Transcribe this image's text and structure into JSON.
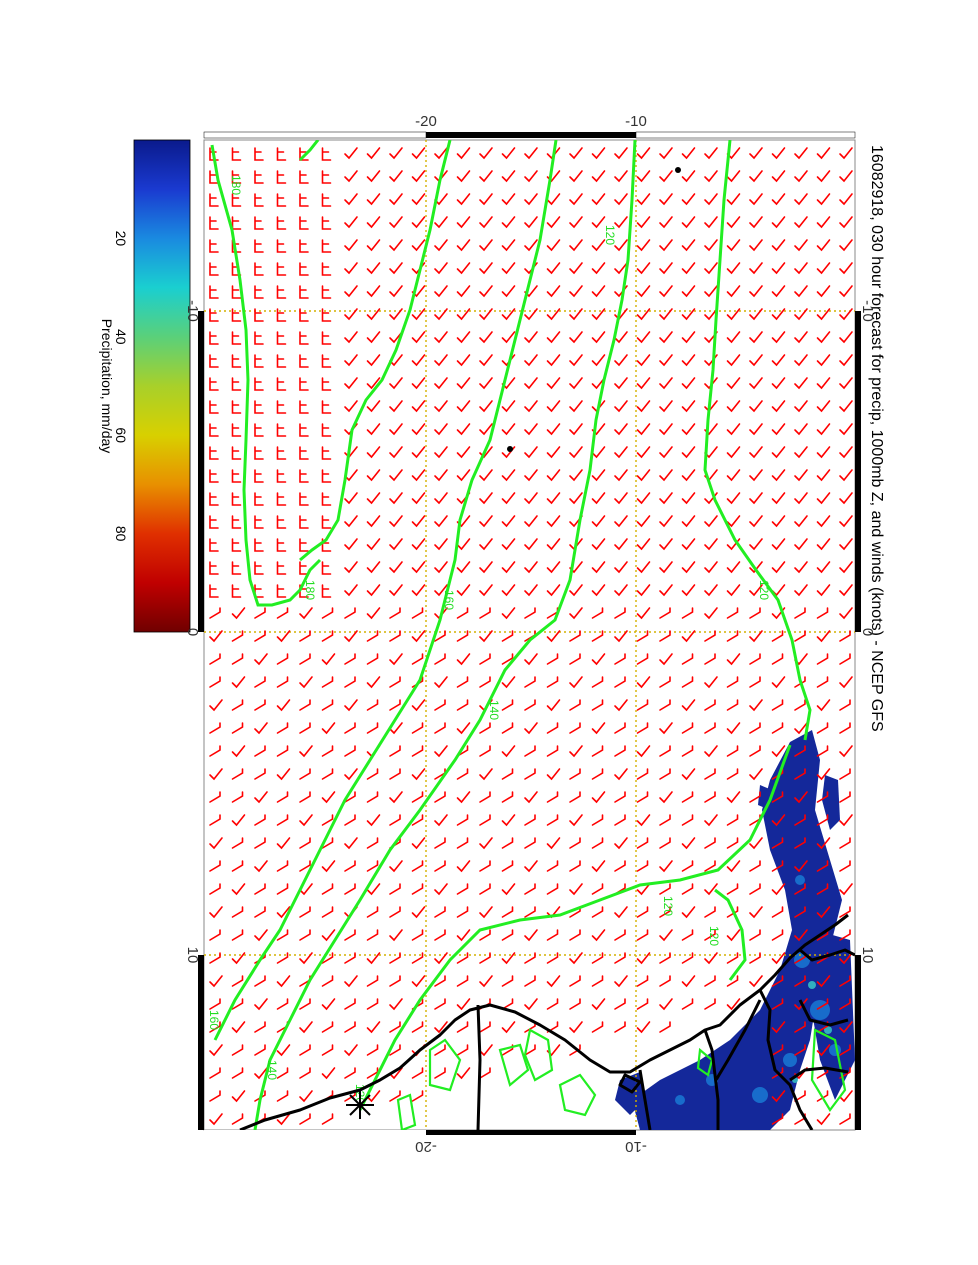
{
  "title": "16082918, 030 hour forecast for precip, 1000mb Z, and winds (knots) - NCEP GFS",
  "colorbar": {
    "label": "Precipitation, mm/day",
    "ticks": [
      "20",
      "40",
      "60",
      "80"
    ],
    "tick_values": [
      20,
      40,
      60,
      80
    ],
    "range": [
      0,
      100
    ],
    "colors": [
      "#0a1a8c",
      "#1a3ad0",
      "#1a8ae0",
      "#1acfd0",
      "#5ad07a",
      "#a8d02a",
      "#d8d000",
      "#e89000",
      "#e03000",
      "#c00000",
      "#700000"
    ]
  },
  "axes": {
    "lat_top_ticks": [
      "-20",
      "-10"
    ],
    "lat_bottom_ticks": [
      "-20",
      "-10"
    ],
    "lon_left_ticks": [
      "-10",
      "0",
      "10"
    ],
    "lon_right_ticks": [
      "-10",
      "0",
      "10"
    ]
  },
  "chart_data": {
    "type": "map",
    "lat_range": [
      -27,
      3
    ],
    "lon_range": [
      -20,
      20
    ],
    "contour_labels": [
      "180",
      "180",
      "160",
      "160",
      "140",
      "140",
      "120",
      "120",
      "120",
      "120",
      "120"
    ],
    "colors": {
      "wind_barbs": "#ff0000",
      "height_contours": "#22ee22",
      "coastline": "#000000",
      "grid": "#d4b000"
    }
  }
}
